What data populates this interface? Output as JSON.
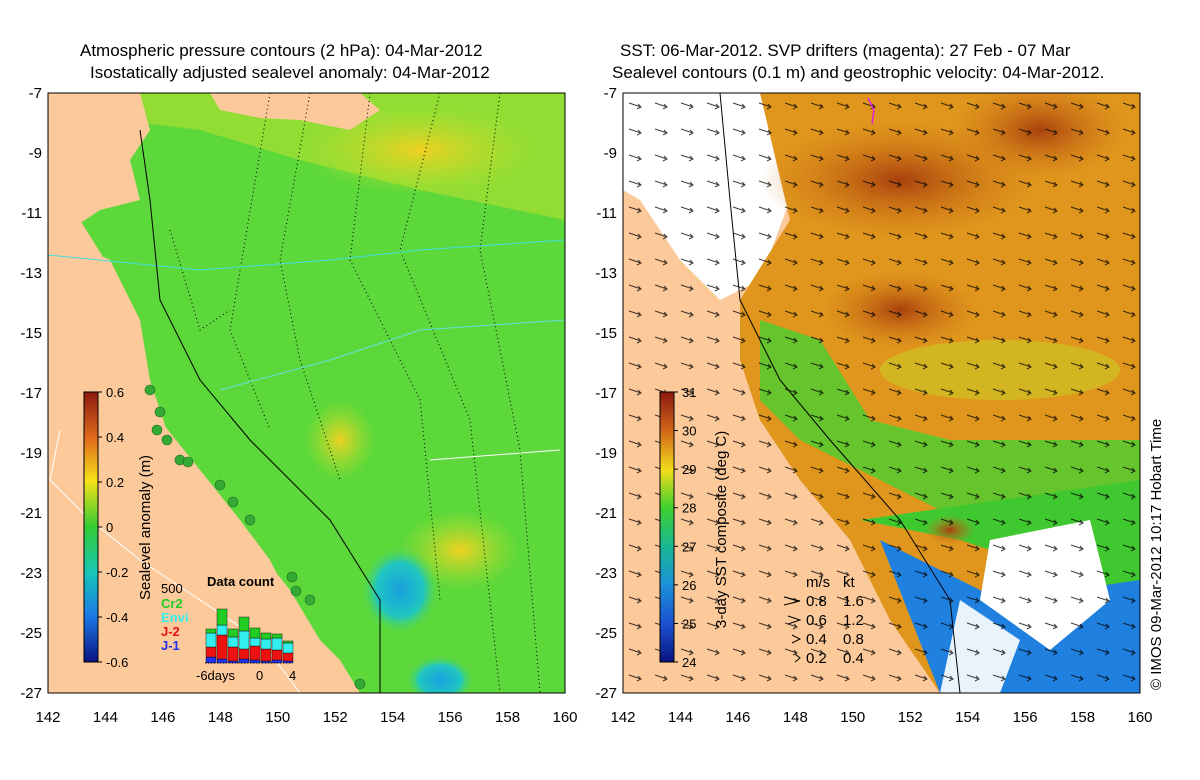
{
  "left_panel": {
    "title_line1": "Atmospheric pressure contours (2 hPa): 04-Mar-2012",
    "title_line2": "Isostatically adjusted sealevel anomaly: 04-Mar-2012",
    "colorbar": {
      "label": "Sealevel anomaly (m)",
      "ticks": [
        "0.6",
        "0.4",
        "0.2",
        "0",
        "-0.2",
        "-0.4",
        "-0.6"
      ]
    },
    "data_count": {
      "title": "Data count",
      "max_label": "500",
      "legend": [
        {
          "name": "Cr2",
          "color": "#22cc22"
        },
        {
          "name": "Envi",
          "color": "#33eeee"
        },
        {
          "name": "J-2",
          "color": "#ee1111"
        },
        {
          "name": "J-1",
          "color": "#2233ee"
        }
      ],
      "x_labels": [
        "-6days",
        "0",
        "4"
      ]
    }
  },
  "right_panel": {
    "title_line1": "SST: 06-Mar-2012. SVP drifters (magenta): 27 Feb - 07 Mar",
    "title_line2": "Sealevel contours (0.1 m) and geostrophic velocity: 04-Mar-2012.",
    "colorbar": {
      "label": "3-day SST composite (deg C)",
      "ticks": [
        "31",
        "30",
        "29",
        "28",
        "27",
        "26",
        "25",
        "24"
      ]
    },
    "velocity_legend": {
      "unit1": "m/s",
      "unit2": "kt",
      "rows": [
        {
          "ms": "0.8",
          "kt": "1.6"
        },
        {
          "ms": "0.6",
          "kt": "1.2"
        },
        {
          "ms": "0.4",
          "kt": "0.8"
        },
        {
          "ms": "0.2",
          "kt": "0.4"
        }
      ]
    }
  },
  "axes": {
    "x_ticks": [
      "142",
      "144",
      "146",
      "148",
      "150",
      "152",
      "154",
      "156",
      "158",
      "160"
    ],
    "y_ticks": [
      "-7",
      "-9",
      "-11",
      "-13",
      "-15",
      "-17",
      "-19",
      "-21",
      "-23",
      "-25",
      "-27"
    ]
  },
  "credit": "© IMOS 09-Mar-2012 10:17 Hobart Time",
  "colors": {
    "land": "#fbc99a",
    "sla_zero": "#33cc33",
    "sst_hot": "#c85a14",
    "no_data": "#ffffff"
  }
}
